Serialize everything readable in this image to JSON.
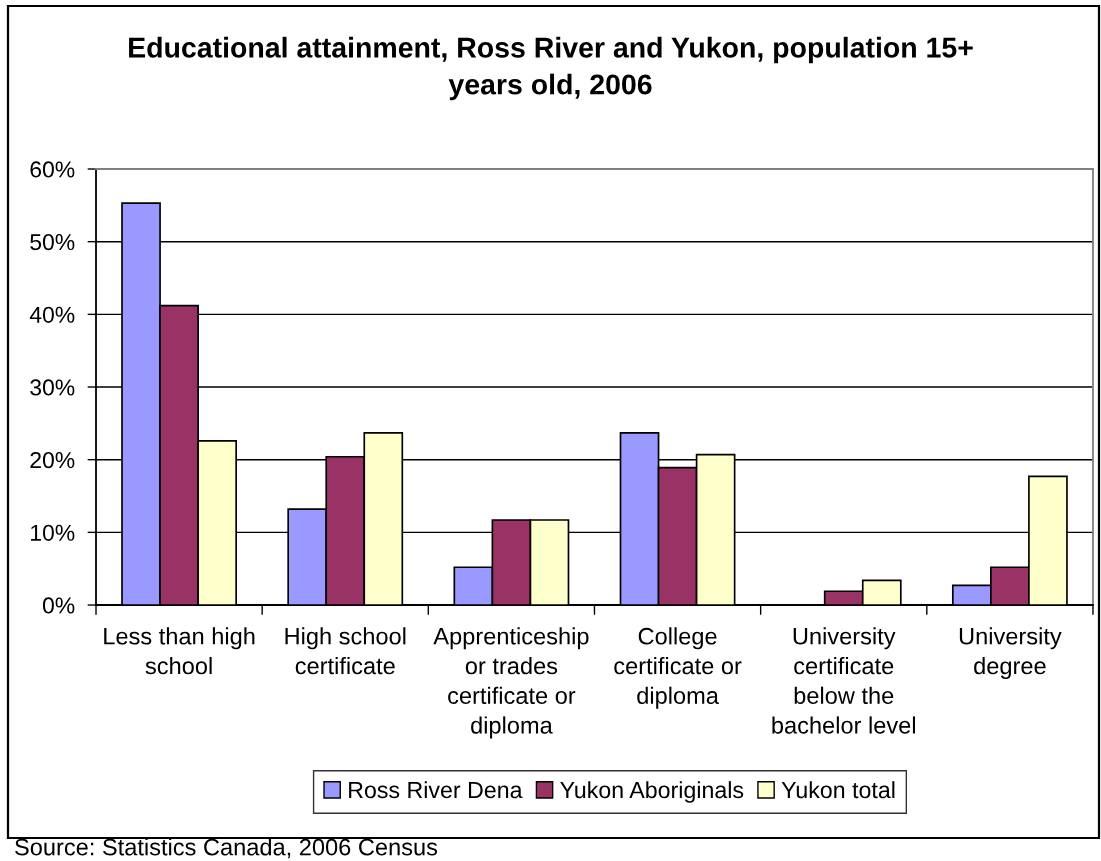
{
  "chart_data": {
    "type": "bar",
    "title": "Educational attainment, Ross River and Yukon, population 15+\nyears old, 2006",
    "categories": [
      "Less than high\nschool",
      "High school\ncertificate",
      "Apprenticeship\nor trades\ncertificate or\ndiploma",
      "College\ncertificate or\ndiploma",
      "University\ncertificate\nbelow the\nbachelor level",
      "University\ndegree"
    ],
    "series": [
      {
        "name": "Ross River Dena",
        "color": "#9999ff",
        "values": [
          55.3,
          13.2,
          5.2,
          23.7,
          null,
          2.7
        ]
      },
      {
        "name": "Yukon Aboriginals",
        "color": "#993366",
        "values": [
          41.2,
          20.4,
          11.7,
          18.9,
          1.9,
          5.2
        ]
      },
      {
        "name": "Yukon total",
        "color": "#ffffcc",
        "values": [
          22.6,
          23.7,
          11.7,
          20.7,
          3.4,
          17.7
        ]
      }
    ],
    "ylim": [
      0,
      60
    ],
    "yticks": [
      {
        "value": 0,
        "label": "0%"
      },
      {
        "value": 10,
        "label": "10%"
      },
      {
        "value": 20,
        "label": "20%"
      },
      {
        "value": 30,
        "label": "30%"
      },
      {
        "value": 40,
        "label": "40%"
      },
      {
        "value": 50,
        "label": "50%"
      },
      {
        "value": 60,
        "label": "60%"
      }
    ],
    "grid": "y",
    "legend": "bottom",
    "annotations": [
      "Source: Statistics Canada, 2006 Census"
    ]
  }
}
